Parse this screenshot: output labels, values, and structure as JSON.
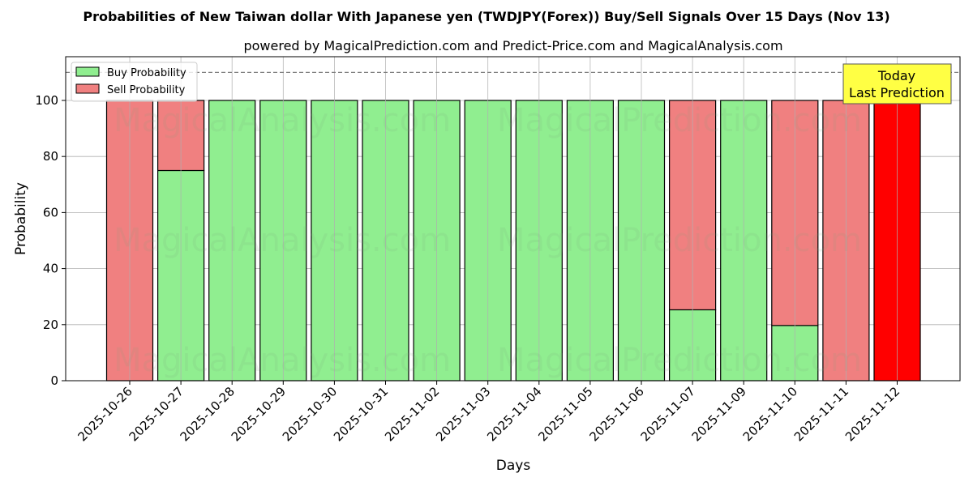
{
  "chart_data": {
    "type": "bar",
    "stacked": true,
    "title": "Probabilities of New Taiwan dollar With Japanese yen (TWDJPY(Forex)) Buy/Sell Signals Over 15 Days (Nov 13)",
    "subtitle": "powered by MagicalPrediction.com and Predict-Price.com and MagicalAnalysis.com",
    "xlabel": "Days",
    "ylabel": "Probability",
    "ylim": [
      0,
      115.6
    ],
    "yticks": [
      0,
      20,
      40,
      60,
      80,
      100
    ],
    "grid": true,
    "reference_line": {
      "y": 110,
      "style": "dashed",
      "color": "#808080"
    },
    "legend_position": "upper left",
    "categories": [
      "2025-10-26",
      "2025-10-27",
      "2025-10-28",
      "2025-10-29",
      "2025-10-30",
      "2025-10-31",
      "2025-11-02",
      "2025-11-03",
      "2025-11-04",
      "2025-11-05",
      "2025-11-06",
      "2025-11-07",
      "2025-11-09",
      "2025-11-10",
      "2025-11-11",
      "2025-11-12"
    ],
    "series": [
      {
        "name": "Buy Probability",
        "color": "#90ee90",
        "values": [
          0,
          75,
          100,
          100,
          100,
          100,
          100,
          100,
          100,
          100,
          100,
          25.3,
          100,
          19.7,
          0,
          0
        ]
      },
      {
        "name": "Sell Probability",
        "color": "#f08080",
        "values": [
          100,
          25,
          0,
          0,
          0,
          0,
          0,
          0,
          0,
          0,
          0,
          74.7,
          0,
          80.3,
          100,
          100
        ]
      }
    ],
    "highlight": {
      "index": 15,
      "sell_color": "#ff0000"
    },
    "annotation": {
      "text_line1": "Today",
      "text_line2": "Last Prediction",
      "bg": "#ffff44"
    },
    "watermarks": [
      "MagicalAnalysis.com",
      "MagicalPrediction.com"
    ]
  }
}
